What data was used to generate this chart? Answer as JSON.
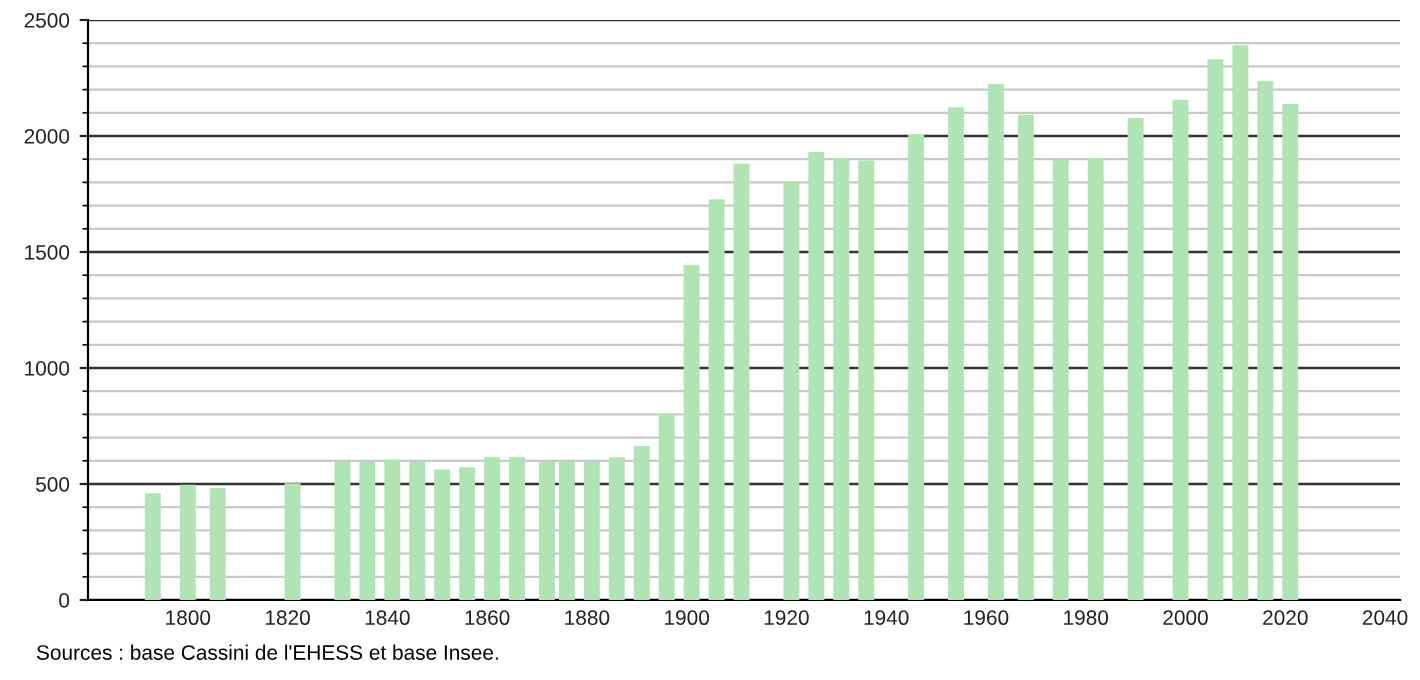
{
  "chart_data": {
    "type": "bar",
    "color": "#b0e4b4",
    "x": [
      1793,
      1800,
      1806,
      1821,
      1831,
      1836,
      1841,
      1846,
      1851,
      1856,
      1861,
      1866,
      1872,
      1876,
      1881,
      1886,
      1891,
      1896,
      1901,
      1906,
      1911,
      1921,
      1926,
      1931,
      1936,
      1946,
      1954,
      1962,
      1968,
      1975,
      1982,
      1990,
      1999,
      2006,
      2011,
      2016,
      2021
    ],
    "values": [
      460,
      497,
      483,
      503,
      595,
      595,
      606,
      595,
      563,
      572,
      615,
      615,
      595,
      595,
      595,
      615,
      664,
      802,
      1443,
      1727,
      1880,
      1805,
      1931,
      1905,
      1894,
      2009,
      2124,
      2224,
      2092,
      1897,
      1905,
      2078,
      2156,
      2331,
      2391,
      2236,
      2138
    ],
    "xlim": [
      1780,
      2043
    ],
    "xticks": [
      1800,
      1820,
      1840,
      1860,
      1880,
      1900,
      1920,
      1940,
      1960,
      1980,
      2000,
      2020,
      2040
    ],
    "ylim": [
      0,
      2500
    ],
    "yticks": [
      0,
      500,
      1000,
      1500,
      2000,
      2500
    ],
    "grid": "y",
    "legend": false,
    "annotations": [
      "Sources : base Cassini de l'EHESS et base Insee."
    ]
  }
}
